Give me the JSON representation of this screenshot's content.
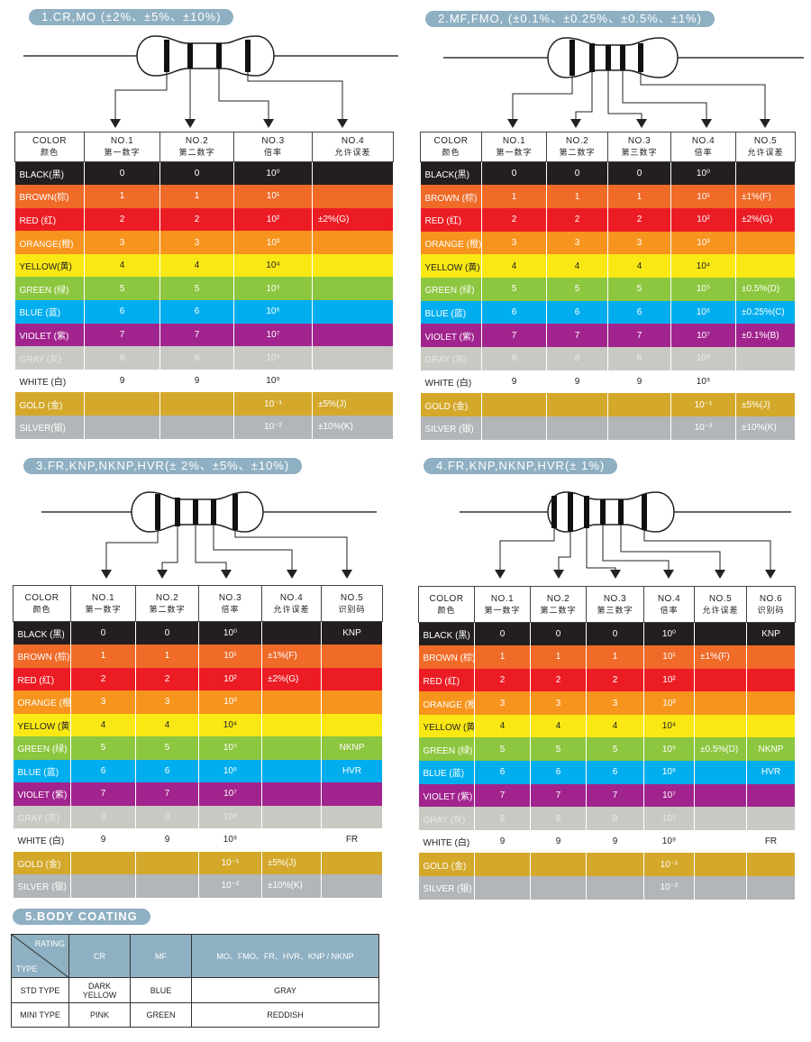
{
  "sections": [
    {
      "title": "1.CR,MO (±2%、±5%、±10%)",
      "headers": [
        [
          "COLOR",
          "颜色"
        ],
        [
          "NO.1",
          "第一数字"
        ],
        [
          "NO.2",
          "第二数字"
        ],
        [
          "NO.3",
          "倍率"
        ],
        [
          "NO.4",
          "允许误差"
        ]
      ],
      "rows": [
        {
          "color": "BLACK(黑)",
          "bg": "#231f20",
          "cells": [
            "0",
            "0",
            "10⁰",
            ""
          ]
        },
        {
          "color": "BROWN(棕)",
          "bg": "#f06a28",
          "cells": [
            "1",
            "1",
            "10¹",
            ""
          ]
        },
        {
          "color": "RED (红)",
          "bg": "#ec1c24",
          "cells": [
            "2",
            "2",
            "10²",
            "±2%(G)"
          ]
        },
        {
          "color": "ORANGE(橙)",
          "bg": "#f7941d",
          "cells": [
            "3",
            "3",
            "10³",
            ""
          ]
        },
        {
          "color": "YELLOW(黄)",
          "bg": "#f9e814",
          "cells": [
            "4",
            "4",
            "10⁴",
            ""
          ]
        },
        {
          "color": "GREEN (绿)",
          "bg": "#8dc63f",
          "cells": [
            "5",
            "5",
            "10⁵",
            ""
          ]
        },
        {
          "color": "BLUE (蓝)",
          "bg": "#00aeef",
          "cells": [
            "6",
            "6",
            "10⁶",
            ""
          ]
        },
        {
          "color": "VIOLET (紫)",
          "bg": "#a1248e",
          "cells": [
            "7",
            "7",
            "10⁷",
            ""
          ]
        },
        {
          "color": "GRAY (灰)",
          "bg": "#c9c9c4",
          "cells": [
            "8",
            "8",
            "10⁸",
            ""
          ]
        },
        {
          "color": "WHITE (白)",
          "bg": "#ffffff",
          "cells": [
            "9",
            "9",
            "10⁹",
            ""
          ]
        },
        {
          "color": "GOLD (金)",
          "bg": "#d4a82a",
          "cells": [
            "",
            "",
            "10⁻¹",
            "±5%(J)"
          ]
        },
        {
          "color": "SILVER(银)",
          "bg": "#b3b6b8",
          "cells": [
            "",
            "",
            "10⁻²",
            "±10%(K)"
          ]
        }
      ]
    },
    {
      "title": "2.MF,FMO, (±0.1%、±0.25%、±0.5%、±1%)",
      "headers": [
        [
          "COLOR",
          "颜色"
        ],
        [
          "NO.1",
          "第一数字"
        ],
        [
          "NO.2",
          "第二数字"
        ],
        [
          "NO.3",
          "第三数字"
        ],
        [
          "NO.4",
          "倍率"
        ],
        [
          "NO.5",
          "允许误差"
        ]
      ],
      "rows": [
        {
          "color": "BLACK(黑)",
          "bg": "#231f20",
          "cells": [
            "0",
            "0",
            "0",
            "10⁰",
            ""
          ]
        },
        {
          "color": "BROWN (棕)",
          "bg": "#f06a28",
          "cells": [
            "1",
            "1",
            "1",
            "10¹",
            "±1%(F)"
          ]
        },
        {
          "color": "RED (红)",
          "bg": "#ec1c24",
          "cells": [
            "2",
            "2",
            "2",
            "10²",
            "±2%(G)"
          ]
        },
        {
          "color": "ORANGE (橙)",
          "bg": "#f7941d",
          "cells": [
            "3",
            "3",
            "3",
            "10³",
            ""
          ]
        },
        {
          "color": "YELLOW (黄)",
          "bg": "#f9e814",
          "cells": [
            "4",
            "4",
            "4",
            "10⁴",
            ""
          ]
        },
        {
          "color": "GREEN (绿)",
          "bg": "#8dc63f",
          "cells": [
            "5",
            "5",
            "5",
            "10⁵",
            "±0.5%(D)"
          ]
        },
        {
          "color": "BLUE (蓝)",
          "bg": "#00aeef",
          "cells": [
            "6",
            "6",
            "6",
            "10⁶",
            "±0.25%(C)"
          ]
        },
        {
          "color": "VIOLET (紫)",
          "bg": "#a1248e",
          "cells": [
            "7",
            "7",
            "7",
            "10⁷",
            "±0.1%(B)"
          ]
        },
        {
          "color": "GRAY (灰)",
          "bg": "#c9c9c4",
          "cells": [
            "8",
            "8",
            "8",
            "10⁸",
            ""
          ]
        },
        {
          "color": "WHITE (白)",
          "bg": "#ffffff",
          "cells": [
            "9",
            "9",
            "9",
            "10⁹",
            ""
          ]
        },
        {
          "color": "GOLD (金)",
          "bg": "#d4a82a",
          "cells": [
            "",
            "",
            "",
            "10⁻¹",
            "±5%(J)"
          ]
        },
        {
          "color": "SILVER (银)",
          "bg": "#b3b6b8",
          "cells": [
            "",
            "",
            "",
            "10⁻²",
            "±10%(K)"
          ]
        }
      ]
    },
    {
      "title": "3.FR,KNP,NKNP,HVR(± 2%、±5%、±10%)",
      "headers": [
        [
          "COLOR",
          "颜色"
        ],
        [
          "NO.1",
          "第一数字"
        ],
        [
          "NO.2",
          "第二数字"
        ],
        [
          "NO.3",
          "倍率"
        ],
        [
          "NO.4",
          "允许误差"
        ],
        [
          "NO.5",
          "识别码"
        ]
      ],
      "rows": [
        {
          "color": "BLACK (黑)",
          "bg": "#231f20",
          "cells": [
            "0",
            "0",
            "10⁰",
            "",
            "KNP"
          ]
        },
        {
          "color": "BROWN (棕)",
          "bg": "#f06a28",
          "cells": [
            "1",
            "1",
            "10¹",
            "±1%(F)",
            ""
          ]
        },
        {
          "color": "RED (红)",
          "bg": "#ec1c24",
          "cells": [
            "2",
            "2",
            "10²",
            "±2%(G)",
            ""
          ]
        },
        {
          "color": "ORANGE (橙)",
          "bg": "#f7941d",
          "cells": [
            "3",
            "3",
            "10³",
            "",
            ""
          ]
        },
        {
          "color": "YELLOW (黄)",
          "bg": "#f9e814",
          "cells": [
            "4",
            "4",
            "10⁴",
            "",
            ""
          ]
        },
        {
          "color": "GREEN (绿)",
          "bg": "#8dc63f",
          "cells": [
            "5",
            "5",
            "10⁵",
            "",
            "NKNP"
          ]
        },
        {
          "color": "BLUE (蓝)",
          "bg": "#00aeef",
          "cells": [
            "6",
            "6",
            "10⁶",
            "",
            "HVR"
          ]
        },
        {
          "color": "VIOLET (紫)",
          "bg": "#a1248e",
          "cells": [
            "7",
            "7",
            "10⁷",
            "",
            ""
          ]
        },
        {
          "color": "GRAY (灰)",
          "bg": "#c9c9c4",
          "cells": [
            "8",
            "8",
            "10⁸",
            "",
            ""
          ]
        },
        {
          "color": "WHITE (白)",
          "bg": "#ffffff",
          "cells": [
            "9",
            "9",
            "10⁹",
            "",
            "FR"
          ]
        },
        {
          "color": "GOLD (金)",
          "bg": "#d4a82a",
          "cells": [
            "",
            "",
            "10⁻¹",
            "±5%(J)",
            ""
          ]
        },
        {
          "color": "SILVER (银)",
          "bg": "#b3b6b8",
          "cells": [
            "",
            "",
            "10⁻²",
            "±10%(K)",
            ""
          ]
        }
      ]
    },
    {
      "title": "4.FR,KNP,NKNP,HVR(± 1%)",
      "headers": [
        [
          "COLOR",
          "颜色"
        ],
        [
          "NO.1",
          "第一数字"
        ],
        [
          "NO.2",
          "第二数字"
        ],
        [
          "NO.3",
          "第三数字"
        ],
        [
          "NO.4",
          "倍率"
        ],
        [
          "NO.5",
          "允许误差"
        ],
        [
          "NO.6",
          "识别码"
        ]
      ],
      "rows": [
        {
          "color": "BLACK (黑)",
          "bg": "#231f20",
          "cells": [
            "0",
            "0",
            "0",
            "10⁰",
            "",
            "KNP"
          ]
        },
        {
          "color": "BROWN (棕)",
          "bg": "#f06a28",
          "cells": [
            "1",
            "1",
            "1",
            "10¹",
            "±1%(F)",
            ""
          ]
        },
        {
          "color": "RED (红)",
          "bg": "#ec1c24",
          "cells": [
            "2",
            "2",
            "2",
            "10²",
            "",
            ""
          ]
        },
        {
          "color": "ORANGE (橙)",
          "bg": "#f7941d",
          "cells": [
            "3",
            "3",
            "3",
            "10³",
            "",
            ""
          ]
        },
        {
          "color": "YELLOW (黄)",
          "bg": "#f9e814",
          "cells": [
            "4",
            "4",
            "4",
            "10⁴",
            "",
            ""
          ]
        },
        {
          "color": "GREEN (绿)",
          "bg": "#8dc63f",
          "cells": [
            "5",
            "5",
            "5",
            "10⁵",
            "±0.5%(D)",
            "NKNP"
          ]
        },
        {
          "color": "BLUE (蓝)",
          "bg": "#00aeef",
          "cells": [
            "6",
            "6",
            "6",
            "10⁶",
            "",
            "HVR"
          ]
        },
        {
          "color": "VIOLET (紫)",
          "bg": "#a1248e",
          "cells": [
            "7",
            "7",
            "7",
            "10⁷",
            "",
            ""
          ]
        },
        {
          "color": "GRAY (灰)",
          "bg": "#c9c9c4",
          "cells": [
            "8",
            "8",
            "8",
            "10⁸",
            "",
            ""
          ]
        },
        {
          "color": "WHITE (白)",
          "bg": "#ffffff",
          "cells": [
            "9",
            "9",
            "9",
            "10⁹",
            "",
            "FR"
          ]
        },
        {
          "color": "GOLD (金)",
          "bg": "#d4a82a",
          "cells": [
            "",
            "",
            "",
            "10⁻¹",
            "",
            ""
          ]
        },
        {
          "color": "SILVER (银)",
          "bg": "#b3b6b8",
          "cells": [
            "",
            "",
            "",
            "10⁻²",
            "",
            ""
          ]
        }
      ]
    }
  ],
  "body_coating": {
    "title": "5.BODY COATING",
    "corner_top": "RATING",
    "corner_bottom": "TYPE",
    "columns": [
      "CR",
      "MF",
      "MO、FMO、FR、HVR、KNP / NKNP"
    ],
    "rows": [
      {
        "type": "STD TYPE",
        "values": [
          "DARK YELLOW",
          "BLUE",
          "GRAY"
        ]
      },
      {
        "type": "MINI TYPE",
        "values": [
          "PINK",
          "GREEN",
          "REDDISH"
        ]
      }
    ]
  }
}
